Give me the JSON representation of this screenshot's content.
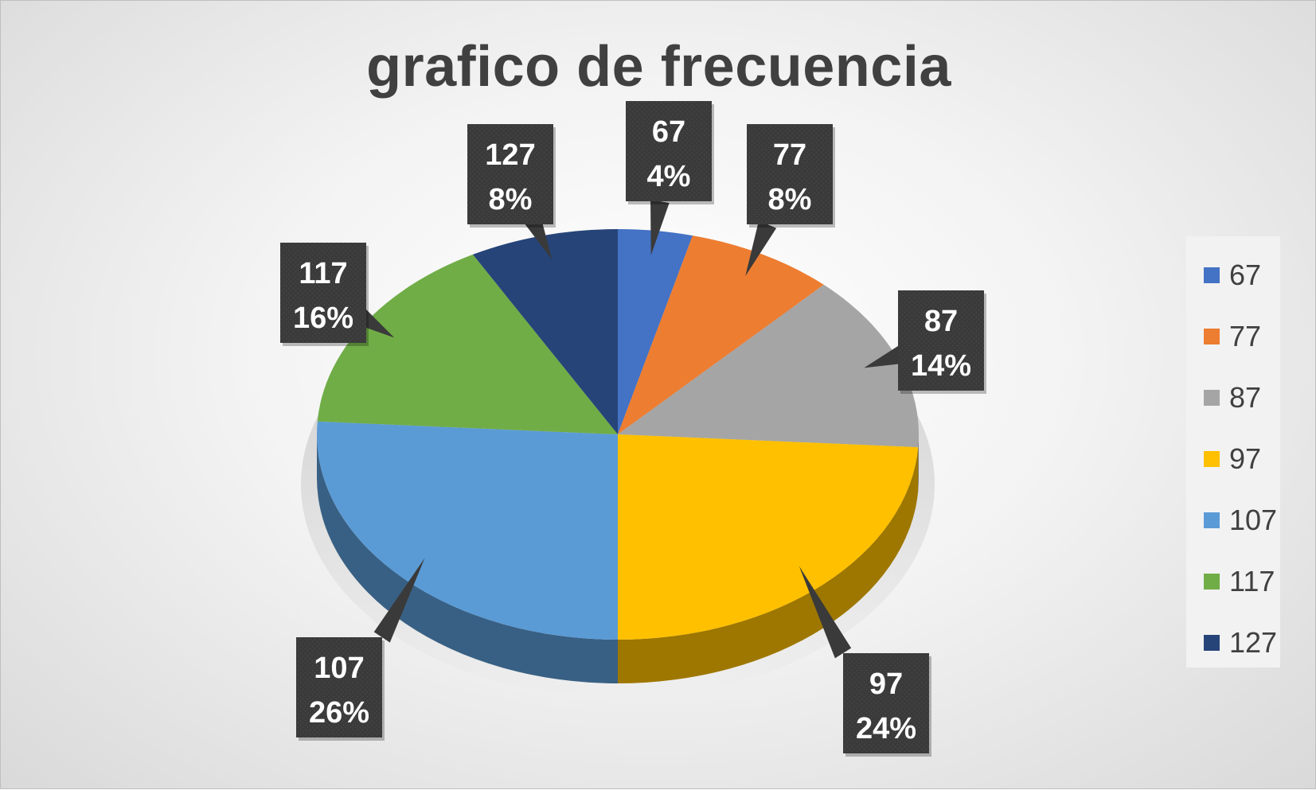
{
  "chart_data": {
    "type": "pie",
    "title": "grafico de frecuencia",
    "categories": [
      "67",
      "77",
      "87",
      "97",
      "107",
      "117",
      "127"
    ],
    "percent_labels": [
      "4%",
      "8%",
      "14%",
      "24%",
      "26%",
      "16%",
      "8%"
    ],
    "values": [
      4,
      8,
      14,
      24,
      26,
      16,
      8
    ],
    "colors": [
      "#4472C4",
      "#ED7D31",
      "#A5A5A5",
      "#FFC000",
      "#5B9BD5",
      "#70AD47",
      "#264478"
    ],
    "legend_position": "right",
    "style": "3d"
  }
}
